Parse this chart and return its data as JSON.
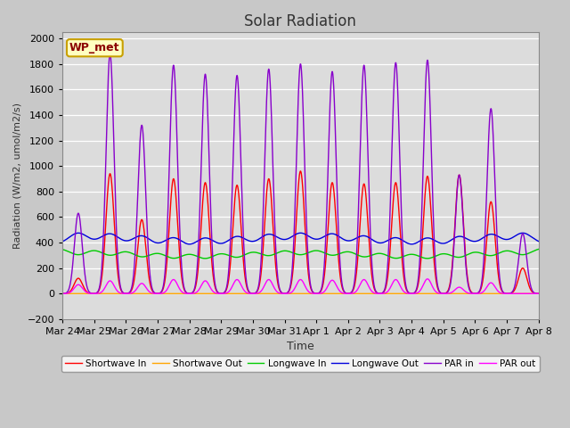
{
  "title": "Solar Radiation",
  "xlabel": "Time",
  "ylabel": "Radiation (W/m2, umol/m2/s)",
  "ylim": [
    -200,
    2050
  ],
  "yticks": [
    -200,
    0,
    200,
    400,
    600,
    800,
    1000,
    1200,
    1400,
    1600,
    1800,
    2000
  ],
  "station_label": "WP_met",
  "fig_facecolor": "#c8c8c8",
  "ax_facecolor": "#dcdcdc",
  "series": {
    "Shortwave In": {
      "color": "#ff0000",
      "lw": 1.0
    },
    "Shortwave Out": {
      "color": "#ffa500",
      "lw": 1.0
    },
    "Longwave In": {
      "color": "#00cc00",
      "lw": 1.0
    },
    "Longwave Out": {
      "color": "#0000dd",
      "lw": 1.0
    },
    "PAR in": {
      "color": "#8800cc",
      "lw": 1.0
    },
    "PAR out": {
      "color": "#ff00ff",
      "lw": 1.0
    }
  },
  "xtick_labels": [
    "Mar 24",
    "Mar 25",
    "Mar 26",
    "Mar 27",
    "Mar 28",
    "Mar 29",
    "Mar 30",
    "Mar 31",
    "Apr 1",
    "Apr 2",
    "Apr 3",
    "Apr 4",
    "Apr 5",
    "Apr 6",
    "Apr 7",
    "Apr 8"
  ],
  "sw_in_peaks": [
    120,
    940,
    580,
    900,
    870,
    850,
    900,
    960,
    870,
    860,
    870,
    920,
    930,
    720,
    200,
    0
  ],
  "par_in_peaks": [
    630,
    1880,
    1320,
    1790,
    1720,
    1710,
    1760,
    1800,
    1740,
    1790,
    1810,
    1830,
    930,
    1450,
    470,
    0
  ],
  "par_out_peaks": [
    70,
    100,
    80,
    110,
    100,
    110,
    110,
    110,
    105,
    110,
    110,
    115,
    50,
    85,
    0,
    0
  ],
  "sw_out_peaks": [
    0,
    0,
    0,
    0,
    0,
    0,
    0,
    0,
    0,
    0,
    0,
    0,
    0,
    0,
    0,
    0
  ],
  "lw_in_base": 345,
  "lw_out_base": 375,
  "lw_in_day_delta": -55,
  "lw_out_day_delta": 80,
  "spike_sigma": 0.13,
  "n_days": 15
}
